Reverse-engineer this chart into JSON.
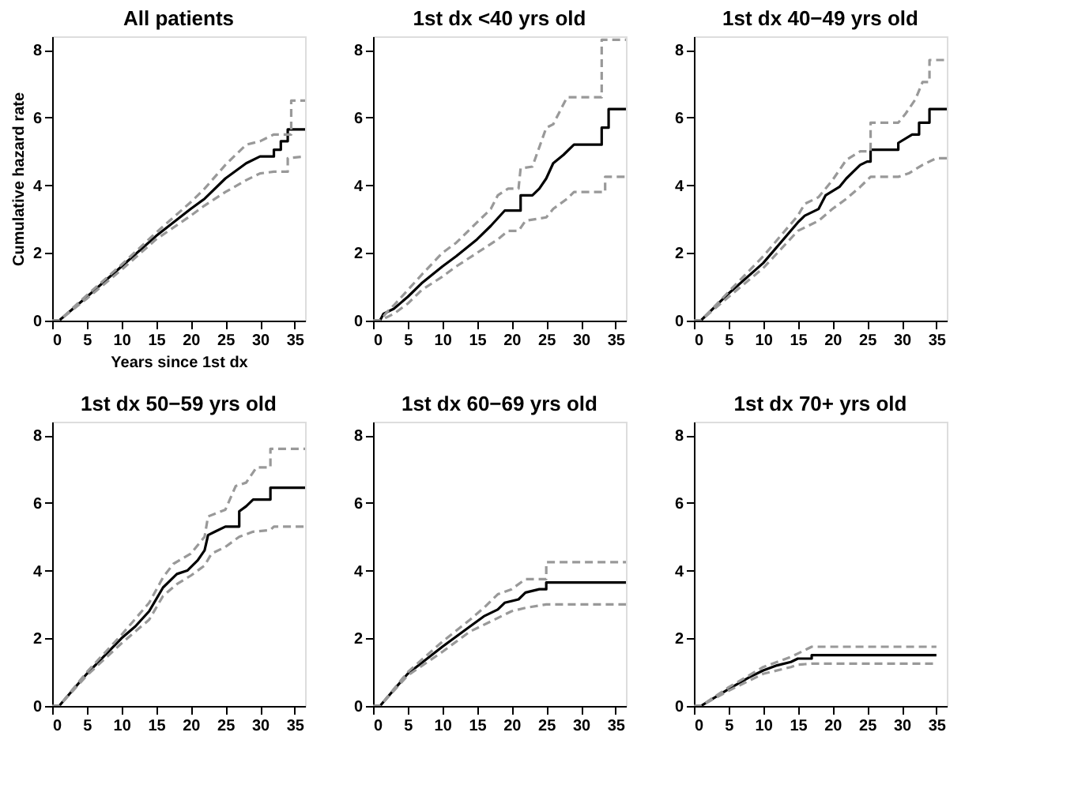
{
  "chart_data": [
    {
      "type": "line",
      "title": "All patients",
      "xlabel": "Years since 1st dx",
      "ylabel": "Cumulative hazard rate",
      "xlim": [
        0,
        36.5
      ],
      "xticks": [
        0,
        5,
        10,
        15,
        20,
        25,
        30,
        35
      ],
      "ylim": [
        0,
        8.4
      ],
      "yticks": [
        0,
        2,
        4,
        6,
        8
      ],
      "grid": false,
      "legend": false,
      "marker": "none",
      "series": [
        {
          "color": "#000000",
          "line_style": "solid",
          "x": [
            0,
            1,
            5,
            10,
            15,
            20,
            22,
            25,
            28,
            30,
            32,
            32,
            33,
            33,
            34,
            34,
            36.5
          ],
          "values": [
            0,
            0,
            0.7,
            1.6,
            2.5,
            3.3,
            3.6,
            4.2,
            4.65,
            4.85,
            4.85,
            5.05,
            5.05,
            5.3,
            5.3,
            5.65,
            5.65
          ]
        },
        {
          "color": "#999999",
          "line_style": "dashed",
          "x": [
            0,
            1,
            5,
            10,
            15,
            20,
            22,
            25,
            28,
            30,
            32,
            34,
            34,
            36.5
          ],
          "values": [
            0,
            0,
            0.65,
            1.5,
            2.4,
            3.1,
            3.4,
            3.8,
            4.15,
            4.35,
            4.4,
            4.4,
            4.8,
            4.85
          ]
        },
        {
          "color": "#999999",
          "line_style": "dashed",
          "x": [
            0,
            1,
            5,
            10,
            15,
            20,
            22,
            25,
            28,
            30,
            32,
            34.5,
            34.5,
            36.5
          ],
          "values": [
            0,
            0,
            0.75,
            1.65,
            2.6,
            3.5,
            3.9,
            4.6,
            5.2,
            5.3,
            5.5,
            5.5,
            6.5,
            6.5
          ]
        }
      ]
    },
    {
      "type": "line",
      "title": "1st dx <40 yrs old",
      "xlim": [
        0,
        36.5
      ],
      "xticks": [
        0,
        5,
        10,
        15,
        20,
        25,
        30,
        35
      ],
      "ylim": [
        0,
        8.4
      ],
      "yticks": [
        0,
        2,
        4,
        6,
        8
      ],
      "grid": false,
      "legend": false,
      "marker": "none",
      "series": [
        {
          "color": "#000000",
          "line_style": "solid",
          "x": [
            0,
            1,
            1.5,
            3,
            5,
            7,
            10,
            12,
            15,
            17,
            19,
            21.3,
            21.3,
            23,
            24,
            25,
            26,
            27.5,
            29,
            33,
            33,
            34,
            34,
            36.5
          ],
          "values": [
            0,
            0,
            0.2,
            0.35,
            0.7,
            1.1,
            1.6,
            1.9,
            2.4,
            2.8,
            3.25,
            3.25,
            3.7,
            3.7,
            3.9,
            4.2,
            4.65,
            4.9,
            5.2,
            5.2,
            5.7,
            5.7,
            6.25,
            6.25
          ]
        },
        {
          "color": "#999999",
          "line_style": "dashed",
          "x": [
            0,
            1,
            3,
            5,
            7,
            10,
            12,
            15,
            18,
            19.5,
            21,
            22,
            25,
            26,
            28,
            29,
            33.5,
            33.5,
            36.5
          ],
          "values": [
            0,
            0,
            0.2,
            0.5,
            0.9,
            1.3,
            1.6,
            2.0,
            2.4,
            2.65,
            2.65,
            2.95,
            3.05,
            3.3,
            3.6,
            3.8,
            3.8,
            4.25,
            4.25
          ]
        },
        {
          "color": "#999999",
          "line_style": "dashed",
          "x": [
            0,
            1,
            2,
            3,
            5,
            7,
            10,
            12,
            15,
            17,
            18,
            19.5,
            21,
            21.3,
            23,
            25,
            26,
            28,
            33,
            33,
            36.5
          ],
          "values": [
            0,
            0,
            0.25,
            0.45,
            0.9,
            1.35,
            2.0,
            2.3,
            2.9,
            3.3,
            3.7,
            3.9,
            3.9,
            4.5,
            4.55,
            5.7,
            5.8,
            6.6,
            6.6,
            8.3,
            8.3
          ]
        }
      ]
    },
    {
      "type": "line",
      "title": "1st dx 40−49 yrs old",
      "xlim": [
        0,
        36.5
      ],
      "xticks": [
        0,
        5,
        10,
        15,
        20,
        25,
        30,
        35
      ],
      "ylim": [
        0,
        8.4
      ],
      "yticks": [
        0,
        2,
        4,
        6,
        8
      ],
      "grid": false,
      "legend": false,
      "marker": "none",
      "series": [
        {
          "color": "#000000",
          "line_style": "solid",
          "x": [
            0,
            1,
            5,
            10,
            15,
            16,
            18,
            19,
            21,
            22,
            23,
            24,
            25,
            25.5,
            25.5,
            29.5,
            29.5,
            31.5,
            32.5,
            32.5,
            34,
            34,
            36.5
          ],
          "values": [
            0,
            0,
            0.8,
            1.7,
            2.9,
            3.1,
            3.3,
            3.7,
            3.95,
            4.2,
            4.4,
            4.6,
            4.7,
            4.7,
            5.05,
            5.05,
            5.25,
            5.5,
            5.5,
            5.85,
            5.85,
            6.25,
            6.25
          ]
        },
        {
          "color": "#999999",
          "line_style": "dashed",
          "x": [
            0,
            1,
            5,
            10,
            15,
            16,
            18,
            20,
            22,
            24,
            25.5,
            29.5,
            31,
            33,
            35,
            36.5
          ],
          "values": [
            0,
            0,
            0.7,
            1.55,
            2.65,
            2.75,
            2.95,
            3.3,
            3.6,
            3.95,
            4.25,
            4.25,
            4.35,
            4.6,
            4.8,
            4.8
          ]
        },
        {
          "color": "#999999",
          "line_style": "dashed",
          "x": [
            0,
            1,
            5,
            10,
            15,
            16,
            18,
            20,
            22,
            24,
            25.5,
            25.5,
            29.5,
            30.5,
            32,
            33,
            34,
            34,
            36.5
          ],
          "values": [
            0,
            0,
            0.85,
            1.9,
            3.1,
            3.45,
            3.65,
            4.15,
            4.75,
            5.0,
            5.0,
            5.85,
            5.85,
            6.1,
            6.55,
            7.05,
            7.05,
            7.7,
            7.7
          ]
        }
      ]
    },
    {
      "type": "line",
      "title": "1st dx 50−59 yrs old",
      "xlim": [
        0,
        36.5
      ],
      "xticks": [
        0,
        5,
        10,
        15,
        20,
        25,
        30,
        35
      ],
      "ylim": [
        0,
        8.4
      ],
      "yticks": [
        0,
        2,
        4,
        6,
        8
      ],
      "grid": false,
      "legend": false,
      "marker": "none",
      "series": [
        {
          "color": "#000000",
          "line_style": "solid",
          "x": [
            0,
            1,
            5,
            10,
            12,
            14,
            16,
            18,
            19.5,
            21,
            22,
            22.5,
            23.5,
            25,
            27,
            27,
            28,
            29,
            31.5,
            31.5,
            36.5
          ],
          "values": [
            0,
            0,
            0.95,
            2.0,
            2.35,
            2.8,
            3.5,
            3.9,
            4.0,
            4.3,
            4.6,
            5.05,
            5.15,
            5.3,
            5.3,
            5.75,
            5.9,
            6.1,
            6.1,
            6.45,
            6.45
          ]
        },
        {
          "color": "#999999",
          "line_style": "dashed",
          "x": [
            0,
            1,
            5,
            10,
            14,
            16,
            18,
            20,
            22,
            23,
            25,
            27,
            29,
            31.5,
            32,
            36.5
          ],
          "values": [
            0,
            0,
            0.9,
            1.85,
            2.55,
            3.25,
            3.6,
            3.85,
            4.15,
            4.5,
            4.7,
            5.0,
            5.15,
            5.2,
            5.3,
            5.3
          ]
        },
        {
          "color": "#999999",
          "line_style": "dashed",
          "x": [
            0,
            1,
            5,
            10,
            14,
            16,
            17.5,
            20,
            22,
            22.5,
            25,
            26.5,
            28,
            29.5,
            31.5,
            31.5,
            36.5
          ],
          "values": [
            0,
            0,
            1.0,
            2.1,
            3.05,
            3.8,
            4.2,
            4.5,
            5.0,
            5.6,
            5.8,
            6.5,
            6.6,
            7.05,
            7.05,
            7.6,
            7.6
          ]
        }
      ]
    },
    {
      "type": "line",
      "title": "1st dx 60−69 yrs old",
      "xlim": [
        0,
        36.5
      ],
      "xticks": [
        0,
        5,
        10,
        15,
        20,
        25,
        30,
        35
      ],
      "ylim": [
        0,
        8.4
      ],
      "yticks": [
        0,
        2,
        4,
        6,
        8
      ],
      "grid": false,
      "legend": false,
      "marker": "none",
      "series": [
        {
          "color": "#000000",
          "line_style": "solid",
          "x": [
            0,
            1,
            5,
            10,
            14,
            16,
            18,
            19,
            21,
            22,
            24,
            25,
            25,
            36.5
          ],
          "values": [
            0,
            0,
            0.95,
            1.75,
            2.35,
            2.65,
            2.85,
            3.05,
            3.15,
            3.35,
            3.45,
            3.45,
            3.65,
            3.65
          ]
        },
        {
          "color": "#999999",
          "line_style": "dashed",
          "x": [
            0,
            1,
            5,
            10,
            14,
            18,
            20,
            22,
            25,
            36.5
          ],
          "values": [
            0,
            0,
            0.9,
            1.6,
            2.2,
            2.6,
            2.8,
            2.9,
            3.0,
            3.0
          ]
        },
        {
          "color": "#999999",
          "line_style": "dashed",
          "x": [
            0,
            1,
            5,
            10,
            14,
            16,
            18,
            20,
            22,
            25,
            25,
            36.5
          ],
          "values": [
            0,
            0,
            1.0,
            1.9,
            2.55,
            2.9,
            3.3,
            3.45,
            3.75,
            3.75,
            4.25,
            4.25
          ]
        }
      ]
    },
    {
      "type": "line",
      "title": "1st dx 70+ yrs old",
      "xlim": [
        0,
        36.5
      ],
      "xticks": [
        0,
        5,
        10,
        15,
        20,
        25,
        30,
        35
      ],
      "ylim": [
        0,
        8.4
      ],
      "yticks": [
        0,
        2,
        4,
        6,
        8
      ],
      "grid": false,
      "legend": false,
      "marker": "none",
      "series": [
        {
          "color": "#000000",
          "line_style": "solid",
          "x": [
            0,
            1,
            5,
            8,
            10,
            12,
            14,
            15,
            17,
            17,
            35
          ],
          "values": [
            0,
            0,
            0.5,
            0.85,
            1.05,
            1.2,
            1.3,
            1.4,
            1.4,
            1.5,
            1.5
          ]
        },
        {
          "color": "#999999",
          "line_style": "dashed",
          "x": [
            0,
            1,
            5,
            10,
            14,
            15,
            17,
            35
          ],
          "values": [
            0,
            0,
            0.45,
            0.95,
            1.15,
            1.22,
            1.25,
            1.25
          ]
        },
        {
          "color": "#999999",
          "line_style": "dashed",
          "x": [
            0,
            1,
            5,
            10,
            14,
            15,
            17,
            35
          ],
          "values": [
            0,
            0,
            0.55,
            1.15,
            1.45,
            1.55,
            1.75,
            1.75
          ]
        }
      ]
    }
  ]
}
